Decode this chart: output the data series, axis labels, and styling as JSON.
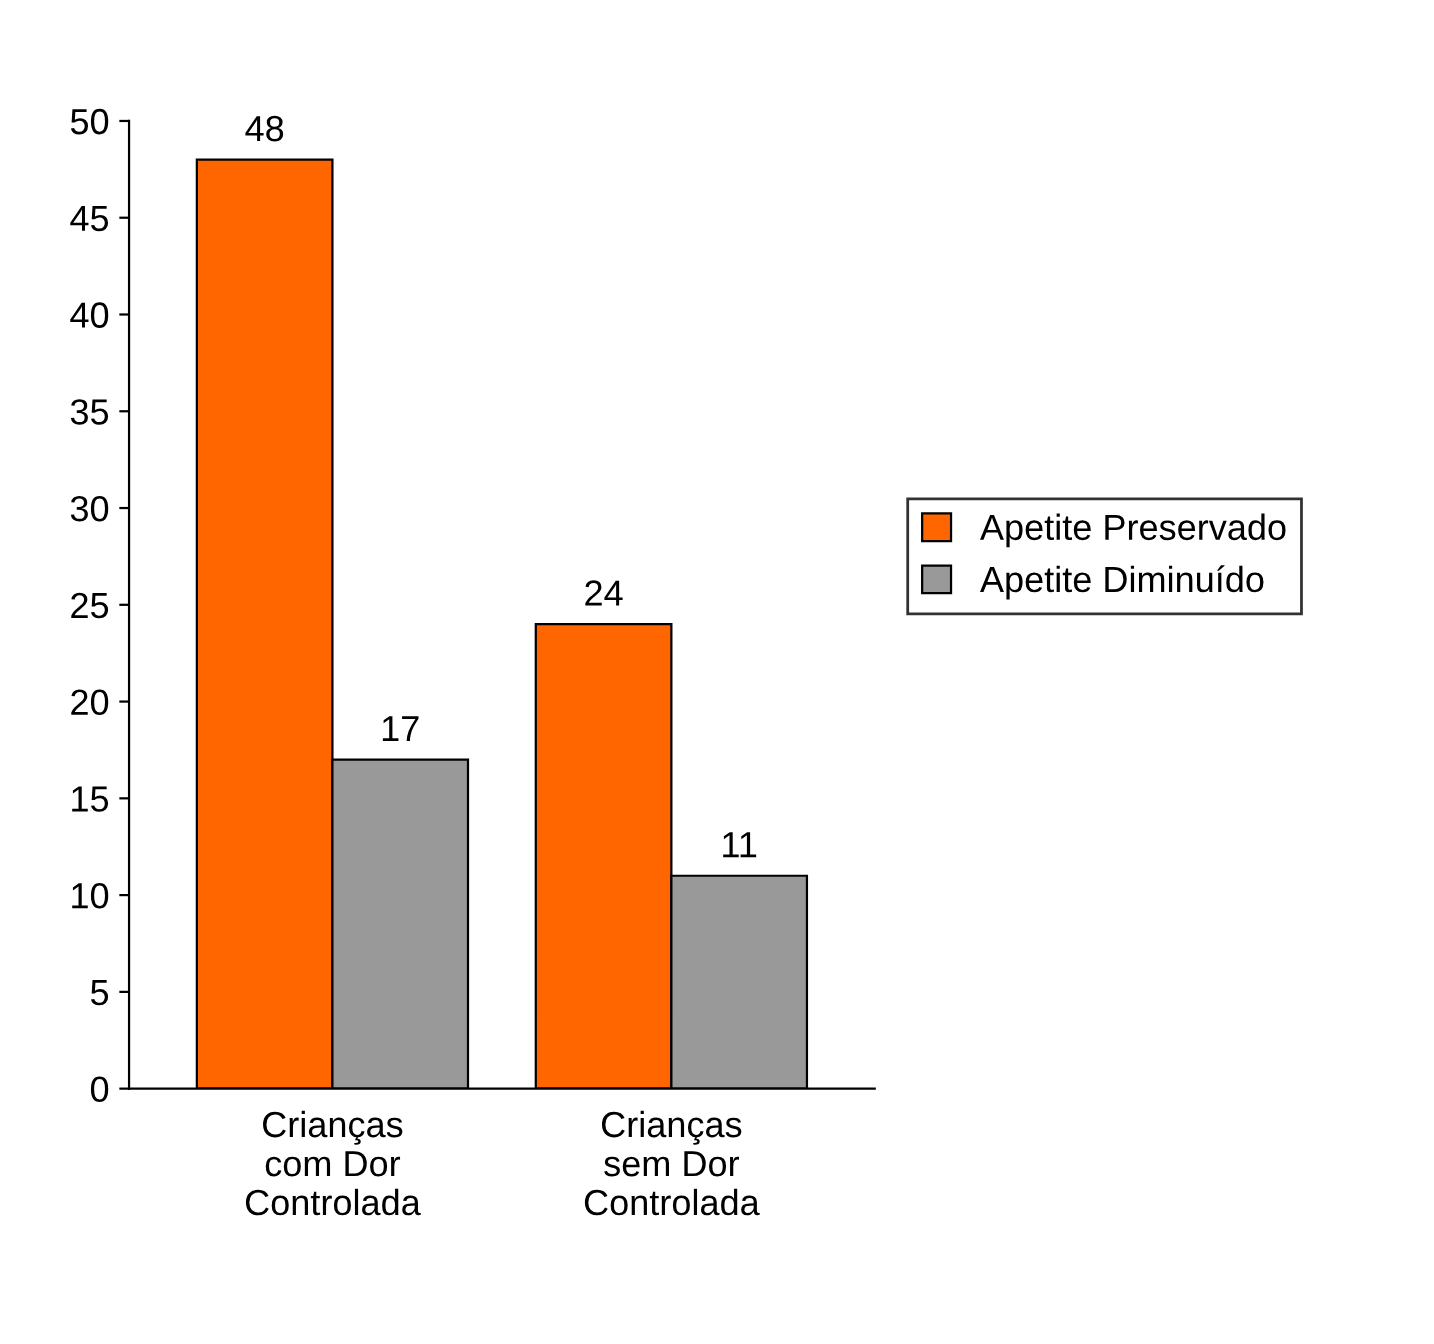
{
  "chart_data": {
    "type": "bar",
    "categories": [
      "Crianças\ncom Dor\nControlada",
      "Crianças\nsem Dor\nControlada"
    ],
    "series": [
      {
        "name": "Apetite Preservado",
        "color": "#ff6600",
        "values": [
          48,
          24
        ]
      },
      {
        "name": "Apetite Diminuído",
        "color": "#999999",
        "values": [
          17,
          11
        ]
      }
    ],
    "ylim": [
      0,
      50
    ],
    "yticks": [
      0,
      5,
      10,
      15,
      20,
      25,
      30,
      35,
      40,
      45,
      50
    ],
    "data_labels": true,
    "legend": "right",
    "grid": false
  }
}
